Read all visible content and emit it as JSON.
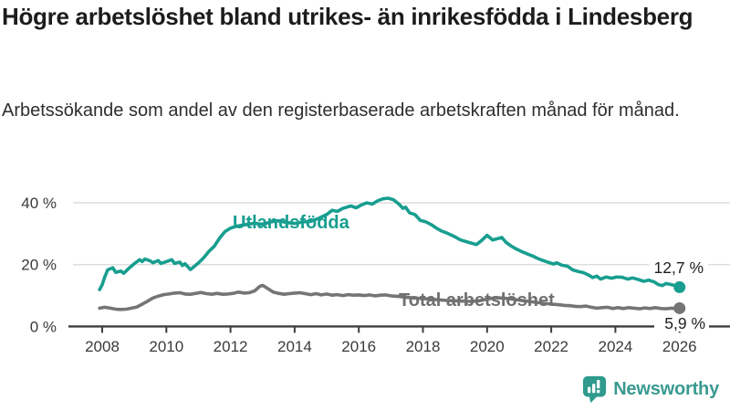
{
  "header": {
    "title": "Högre arbetslöshet bland utrikes- än inrikesfödda i Lindesberg",
    "subtitle": "Arbetssökande som andel av den registerbaserade arbetskraften månad för månad."
  },
  "chart_data": {
    "type": "line",
    "title": "Högre arbetslöshet bland utrikes- än inrikesfödda i Lindesberg",
    "xlabel": "",
    "ylabel": "",
    "grid": "horizontal",
    "legend_position": "inline-labels",
    "x_axis": {
      "ticks": [
        2008,
        2010,
        2012,
        2014,
        2016,
        2018,
        2020,
        2022,
        2024,
        2026
      ],
      "range": [
        2007.8,
        2027.6
      ]
    },
    "y_axis": {
      "ticks": [
        {
          "value": 0,
          "label": "0 %"
        },
        {
          "value": 20,
          "label": "20 %"
        },
        {
          "value": 40,
          "label": "40 %"
        }
      ],
      "range": [
        0,
        45
      ]
    },
    "series": [
      {
        "name": "Utlandsfödda",
        "color": "#189e90",
        "end_label": "12,7 %",
        "end_value": 12.7,
        "points": [
          [
            2007.92,
            11.9
          ],
          [
            2008.0,
            13.5
          ],
          [
            2008.08,
            16.0
          ],
          [
            2008.17,
            18.3
          ],
          [
            2008.33,
            19.0
          ],
          [
            2008.42,
            17.5
          ],
          [
            2008.58,
            17.9
          ],
          [
            2008.67,
            17.2
          ],
          [
            2008.83,
            18.8
          ],
          [
            2009.0,
            20.3
          ],
          [
            2009.17,
            21.6
          ],
          [
            2009.25,
            21.0
          ],
          [
            2009.33,
            21.8
          ],
          [
            2009.5,
            21.2
          ],
          [
            2009.58,
            20.6
          ],
          [
            2009.75,
            21.3
          ],
          [
            2009.83,
            20.4
          ],
          [
            2010.0,
            21.0
          ],
          [
            2010.17,
            21.6
          ],
          [
            2010.25,
            20.4
          ],
          [
            2010.42,
            20.8
          ],
          [
            2010.5,
            19.7
          ],
          [
            2010.58,
            20.3
          ],
          [
            2010.75,
            18.4
          ],
          [
            2010.92,
            19.8
          ],
          [
            2011.0,
            20.5
          ],
          [
            2011.17,
            22.3
          ],
          [
            2011.33,
            24.3
          ],
          [
            2011.5,
            26.0
          ],
          [
            2011.67,
            28.7
          ],
          [
            2011.83,
            30.7
          ],
          [
            2012.0,
            31.8
          ],
          [
            2012.17,
            32.4
          ],
          [
            2012.33,
            32.7
          ],
          [
            2012.5,
            33.0
          ],
          [
            2012.75,
            33.4
          ],
          [
            2013.0,
            33.0
          ],
          [
            2013.25,
            33.8
          ],
          [
            2013.5,
            34.2
          ],
          [
            2013.75,
            33.6
          ],
          [
            2014.0,
            33.3
          ],
          [
            2014.25,
            33.8
          ],
          [
            2014.5,
            34.0
          ],
          [
            2014.75,
            35.0
          ],
          [
            2015.0,
            36.2
          ],
          [
            2015.17,
            37.6
          ],
          [
            2015.33,
            37.2
          ],
          [
            2015.5,
            38.2
          ],
          [
            2015.75,
            39.0
          ],
          [
            2015.92,
            38.4
          ],
          [
            2016.08,
            39.3
          ],
          [
            2016.25,
            40.0
          ],
          [
            2016.42,
            39.6
          ],
          [
            2016.58,
            40.6
          ],
          [
            2016.75,
            41.3
          ],
          [
            2016.92,
            41.5
          ],
          [
            2017.08,
            41.0
          ],
          [
            2017.25,
            39.6
          ],
          [
            2017.38,
            38.2
          ],
          [
            2017.46,
            38.6
          ],
          [
            2017.58,
            36.8
          ],
          [
            2017.75,
            36.2
          ],
          [
            2017.92,
            34.3
          ],
          [
            2018.08,
            33.9
          ],
          [
            2018.25,
            33.0
          ],
          [
            2018.42,
            31.8
          ],
          [
            2018.58,
            30.9
          ],
          [
            2018.75,
            30.2
          ],
          [
            2019.0,
            29.0
          ],
          [
            2019.17,
            28.0
          ],
          [
            2019.33,
            27.5
          ],
          [
            2019.5,
            27.0
          ],
          [
            2019.67,
            26.5
          ],
          [
            2019.83,
            27.8
          ],
          [
            2020.0,
            29.5
          ],
          [
            2020.08,
            28.8
          ],
          [
            2020.17,
            28.0
          ],
          [
            2020.33,
            28.4
          ],
          [
            2020.46,
            28.8
          ],
          [
            2020.58,
            27.3
          ],
          [
            2020.75,
            26.0
          ],
          [
            2020.92,
            25.0
          ],
          [
            2021.08,
            24.2
          ],
          [
            2021.25,
            23.5
          ],
          [
            2021.42,
            22.8
          ],
          [
            2021.58,
            22.0
          ],
          [
            2021.75,
            21.3
          ],
          [
            2021.92,
            20.7
          ],
          [
            2022.08,
            20.2
          ],
          [
            2022.17,
            20.6
          ],
          [
            2022.33,
            19.8
          ],
          [
            2022.5,
            19.5
          ],
          [
            2022.67,
            18.3
          ],
          [
            2022.83,
            17.8
          ],
          [
            2023.0,
            17.4
          ],
          [
            2023.17,
            16.6
          ],
          [
            2023.29,
            15.8
          ],
          [
            2023.42,
            16.3
          ],
          [
            2023.54,
            15.3
          ],
          [
            2023.71,
            16.0
          ],
          [
            2023.88,
            15.6
          ],
          [
            2024.04,
            16.0
          ],
          [
            2024.21,
            15.9
          ],
          [
            2024.38,
            15.3
          ],
          [
            2024.54,
            15.7
          ],
          [
            2024.71,
            15.2
          ],
          [
            2024.88,
            14.6
          ],
          [
            2025.04,
            15.0
          ],
          [
            2025.21,
            14.4
          ],
          [
            2025.33,
            13.6
          ],
          [
            2025.46,
            13.2
          ],
          [
            2025.58,
            13.9
          ],
          [
            2025.71,
            13.6
          ],
          [
            2025.83,
            13.3
          ],
          [
            2025.92,
            13.0
          ],
          [
            2026.0,
            12.7
          ]
        ]
      },
      {
        "name": "Total arbetslöshet",
        "color": "#757575",
        "end_label": "5,9 %",
        "end_value": 5.9,
        "points": [
          [
            2007.92,
            5.9
          ],
          [
            2008.08,
            6.2
          ],
          [
            2008.25,
            5.9
          ],
          [
            2008.42,
            5.6
          ],
          [
            2008.58,
            5.5
          ],
          [
            2008.75,
            5.6
          ],
          [
            2008.92,
            5.9
          ],
          [
            2009.08,
            6.3
          ],
          [
            2009.25,
            7.2
          ],
          [
            2009.42,
            8.2
          ],
          [
            2009.58,
            9.2
          ],
          [
            2009.75,
            9.8
          ],
          [
            2009.92,
            10.3
          ],
          [
            2010.08,
            10.5
          ],
          [
            2010.25,
            10.8
          ],
          [
            2010.42,
            10.9
          ],
          [
            2010.58,
            10.5
          ],
          [
            2010.75,
            10.4
          ],
          [
            2010.92,
            10.7
          ],
          [
            2011.08,
            11.0
          ],
          [
            2011.25,
            10.6
          ],
          [
            2011.42,
            10.4
          ],
          [
            2011.58,
            10.7
          ],
          [
            2011.75,
            10.4
          ],
          [
            2011.92,
            10.5
          ],
          [
            2012.08,
            10.7
          ],
          [
            2012.25,
            11.1
          ],
          [
            2012.42,
            10.8
          ],
          [
            2012.58,
            10.9
          ],
          [
            2012.75,
            11.5
          ],
          [
            2012.92,
            13.0
          ],
          [
            2013.0,
            13.3
          ],
          [
            2013.17,
            12.2
          ],
          [
            2013.33,
            11.1
          ],
          [
            2013.5,
            10.7
          ],
          [
            2013.67,
            10.4
          ],
          [
            2013.83,
            10.6
          ],
          [
            2014.0,
            10.8
          ],
          [
            2014.17,
            10.9
          ],
          [
            2014.33,
            10.6
          ],
          [
            2014.5,
            10.3
          ],
          [
            2014.67,
            10.6
          ],
          [
            2014.83,
            10.2
          ],
          [
            2015.0,
            10.5
          ],
          [
            2015.17,
            10.1
          ],
          [
            2015.33,
            10.3
          ],
          [
            2015.5,
            10.0
          ],
          [
            2015.67,
            10.3
          ],
          [
            2015.83,
            10.1
          ],
          [
            2016.0,
            10.2
          ],
          [
            2016.17,
            10.0
          ],
          [
            2016.33,
            10.2
          ],
          [
            2016.5,
            9.9
          ],
          [
            2016.67,
            10.1
          ],
          [
            2016.83,
            10.2
          ],
          [
            2017.0,
            9.9
          ],
          [
            2017.25,
            9.7
          ],
          [
            2017.5,
            9.4
          ],
          [
            2017.75,
            9.2
          ],
          [
            2018.0,
            9.0
          ],
          [
            2018.25,
            8.8
          ],
          [
            2018.5,
            8.6
          ],
          [
            2018.75,
            8.4
          ],
          [
            2019.0,
            8.3
          ],
          [
            2019.25,
            8.2
          ],
          [
            2019.5,
            8.1
          ],
          [
            2019.75,
            8.3
          ],
          [
            2020.0,
            8.8
          ],
          [
            2020.25,
            9.3
          ],
          [
            2020.5,
            9.2
          ],
          [
            2020.75,
            8.9
          ],
          [
            2021.0,
            8.5
          ],
          [
            2021.25,
            8.2
          ],
          [
            2021.5,
            7.8
          ],
          [
            2021.75,
            7.5
          ],
          [
            2022.0,
            7.2
          ],
          [
            2022.25,
            7.0
          ],
          [
            2022.42,
            6.8
          ],
          [
            2022.58,
            6.7
          ],
          [
            2022.75,
            6.5
          ],
          [
            2022.92,
            6.4
          ],
          [
            2023.08,
            6.6
          ],
          [
            2023.25,
            6.2
          ],
          [
            2023.42,
            5.9
          ],
          [
            2023.58,
            6.1
          ],
          [
            2023.75,
            6.2
          ],
          [
            2023.92,
            5.8
          ],
          [
            2024.08,
            6.1
          ],
          [
            2024.25,
            5.8
          ],
          [
            2024.42,
            6.1
          ],
          [
            2024.58,
            5.9
          ],
          [
            2024.75,
            5.7
          ],
          [
            2024.92,
            6.0
          ],
          [
            2025.08,
            5.8
          ],
          [
            2025.25,
            6.1
          ],
          [
            2025.42,
            5.8
          ],
          [
            2025.58,
            5.7
          ],
          [
            2025.75,
            5.9
          ],
          [
            2025.92,
            5.7
          ],
          [
            2026.0,
            5.9
          ]
        ]
      }
    ]
  },
  "footer": {
    "brand": "Newsworthy",
    "logo_icon": "bar-chart-speech-bubble-icon",
    "logo_color": "#2f9b8e",
    "brand_color": "#3a9a90"
  }
}
